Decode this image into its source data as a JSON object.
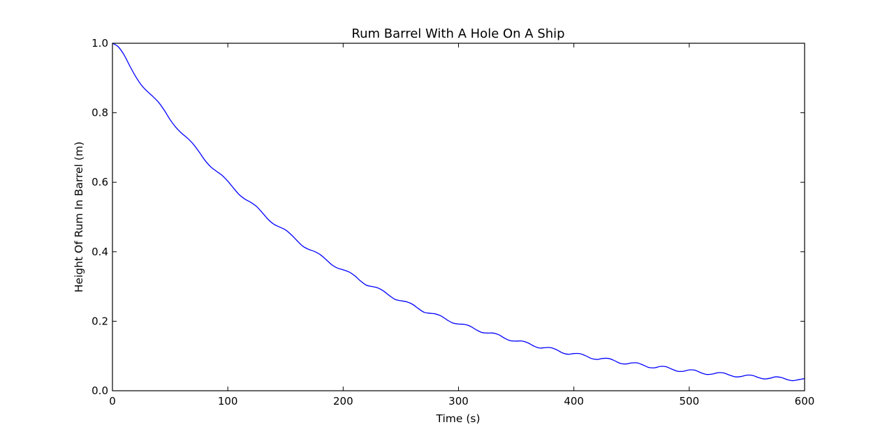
{
  "chart_data": {
    "type": "line",
    "title": "Rum Barrel With A Hole On A Ship",
    "xlabel": "Time (s)",
    "ylabel": "Height Of Rum In Barrel (m)",
    "xlim": [
      0,
      600
    ],
    "ylim": [
      0.0,
      1.0
    ],
    "xticks": [
      0,
      100,
      200,
      300,
      400,
      500,
      600
    ],
    "xtick_labels": [
      "0",
      "100",
      "200",
      "300",
      "400",
      "500",
      "600"
    ],
    "yticks": [
      0.0,
      0.2,
      0.4,
      0.6,
      0.8,
      1.0
    ],
    "ytick_labels": [
      "0.0",
      "0.2",
      "0.4",
      "0.6",
      "0.8",
      "1.0"
    ],
    "grid": false,
    "legend": false,
    "line_color": "#0000ff",
    "series": [
      {
        "x": [
          0,
          5,
          10,
          15,
          20,
          25,
          30,
          35,
          40,
          45,
          50,
          55,
          60,
          65,
          70,
          75,
          80,
          85,
          90,
          95,
          100,
          105,
          110,
          115,
          120,
          125,
          130,
          135,
          140,
          145,
          150,
          155,
          160,
          165,
          170,
          175,
          180,
          185,
          190,
          195,
          200,
          205,
          210,
          215,
          220,
          225,
          230,
          235,
          240,
          245,
          250,
          255,
          260,
          265,
          270,
          275,
          280,
          285,
          290,
          295,
          300,
          305,
          310,
          315,
          320,
          325,
          330,
          335,
          340,
          345,
          350,
          355,
          360,
          365,
          370,
          375,
          380,
          385,
          390,
          395,
          400,
          405,
          410,
          415,
          420,
          425,
          430,
          435,
          440,
          445,
          450,
          455,
          460,
          465,
          470,
          475,
          480,
          485,
          490,
          495,
          500,
          505,
          510,
          515,
          520,
          525,
          530,
          535,
          540,
          545,
          550,
          555,
          560,
          565,
          570,
          575,
          580,
          585,
          590,
          595,
          600
        ],
        "y": [
          1.0,
          0.99,
          0.967,
          0.935,
          0.905,
          0.88,
          0.862,
          0.847,
          0.83,
          0.807,
          0.78,
          0.758,
          0.741,
          0.727,
          0.71,
          0.688,
          0.664,
          0.645,
          0.632,
          0.62,
          0.603,
          0.583,
          0.564,
          0.551,
          0.542,
          0.53,
          0.512,
          0.493,
          0.479,
          0.471,
          0.463,
          0.449,
          0.432,
          0.416,
          0.407,
          0.401,
          0.392,
          0.378,
          0.363,
          0.353,
          0.348,
          0.342,
          0.331,
          0.316,
          0.304,
          0.3,
          0.296,
          0.287,
          0.274,
          0.263,
          0.259,
          0.256,
          0.249,
          0.237,
          0.226,
          0.223,
          0.221,
          0.215,
          0.204,
          0.195,
          0.192,
          0.191,
          0.186,
          0.176,
          0.168,
          0.166,
          0.166,
          0.161,
          0.151,
          0.144,
          0.143,
          0.143,
          0.138,
          0.129,
          0.123,
          0.124,
          0.124,
          0.118,
          0.109,
          0.105,
          0.107,
          0.107,
          0.101,
          0.093,
          0.09,
          0.093,
          0.093,
          0.087,
          0.079,
          0.077,
          0.08,
          0.08,
          0.074,
          0.067,
          0.066,
          0.07,
          0.069,
          0.062,
          0.056,
          0.056,
          0.06,
          0.059,
          0.052,
          0.047,
          0.048,
          0.052,
          0.051,
          0.045,
          0.04,
          0.041,
          0.045,
          0.044,
          0.038,
          0.034,
          0.036,
          0.04,
          0.038,
          0.032,
          0.029,
          0.032,
          0.035
        ]
      }
    ]
  }
}
